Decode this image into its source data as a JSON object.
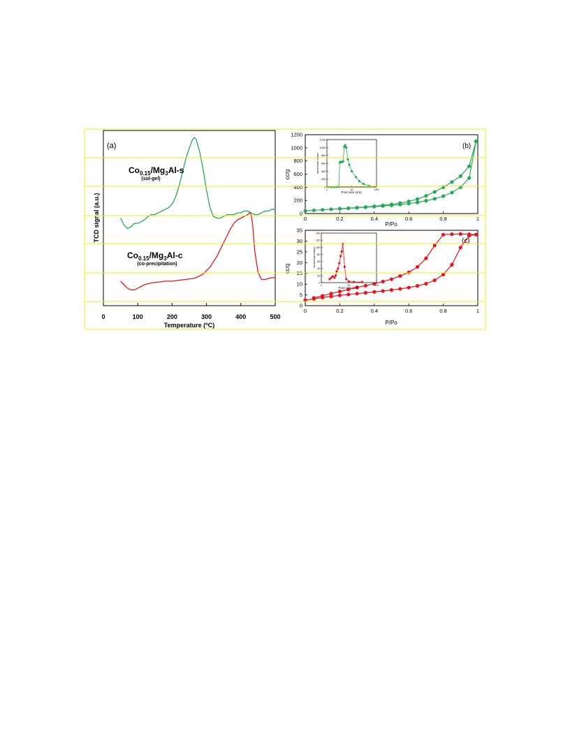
{
  "colors": {
    "green": "#22aa55",
    "red": "#e8121a",
    "highlight": "#f2ea1c",
    "frame": "#f2ea1c",
    "axis": "#000000"
  },
  "chart_data": [
    {
      "panel_label": "(a)",
      "type": "line",
      "xlabel": "Temperature (oC)",
      "ylabel": "TCD signal (a.u.)",
      "xlim": [
        0,
        500
      ],
      "xticks": [
        0,
        100,
        200,
        300,
        400,
        500
      ],
      "y_units": "arbitrary",
      "series": [
        {
          "name": "Co0.15/Mg3Al-s",
          "subtitle": "(sol-gel)",
          "label_main": "Co",
          "label_sub": "0.15",
          "label_mid": "/Mg",
          "label_sub2": "3",
          "label_end": "Al-s",
          "color": "green",
          "x": [
            50,
            60,
            70,
            80,
            90,
            100,
            110,
            120,
            130,
            140,
            150,
            160,
            170,
            180,
            190,
            200,
            210,
            220,
            230,
            240,
            250,
            260,
            265,
            270,
            280,
            290,
            300,
            310,
            320,
            330,
            340,
            350,
            360,
            370,
            380,
            390,
            400,
            410,
            420,
            430,
            440,
            450,
            460,
            470,
            480,
            490,
            500
          ],
          "y": [
            0.5,
            0.46,
            0.44,
            0.45,
            0.47,
            0.47,
            0.48,
            0.49,
            0.51,
            0.52,
            0.52,
            0.53,
            0.54,
            0.55,
            0.56,
            0.58,
            0.62,
            0.68,
            0.76,
            0.84,
            0.9,
            0.95,
            0.96,
            0.95,
            0.88,
            0.78,
            0.66,
            0.56,
            0.51,
            0.5,
            0.5,
            0.51,
            0.52,
            0.52,
            0.52,
            0.53,
            0.53,
            0.54,
            0.54,
            0.53,
            0.52,
            0.52,
            0.53,
            0.54,
            0.54,
            0.55,
            0.55
          ]
        },
        {
          "name": "Co0.15/Mg3Al-c",
          "subtitle": "(co-precipitation)",
          "label_main": "Co",
          "label_sub": "0.15",
          "label_mid": "/Mg",
          "label_sub2": "3",
          "label_end": "Al-c",
          "color": "red",
          "x": [
            50,
            60,
            70,
            80,
            90,
            100,
            110,
            120,
            140,
            160,
            180,
            200,
            220,
            240,
            260,
            270,
            280,
            290,
            300,
            310,
            320,
            330,
            340,
            350,
            360,
            370,
            380,
            390,
            400,
            410,
            420,
            425,
            430,
            435,
            440,
            450,
            460,
            470,
            480,
            490,
            500
          ],
          "y": [
            0.14,
            0.12,
            0.1,
            0.09,
            0.09,
            0.1,
            0.11,
            0.12,
            0.13,
            0.135,
            0.14,
            0.14,
            0.145,
            0.15,
            0.155,
            0.16,
            0.17,
            0.18,
            0.2,
            0.22,
            0.25,
            0.28,
            0.32,
            0.36,
            0.4,
            0.44,
            0.47,
            0.49,
            0.5,
            0.51,
            0.52,
            0.53,
            0.52,
            0.45,
            0.32,
            0.19,
            0.15,
            0.15,
            0.155,
            0.16,
            0.16
          ]
        }
      ]
    },
    {
      "panel_label": "(b)",
      "type": "line",
      "xlabel": "P/Po",
      "ylabel": "cc/g",
      "xlim": [
        0,
        1
      ],
      "ylim": [
        0,
        1200
      ],
      "xticks": [
        "0",
        "0.2",
        "0.4",
        "0.6",
        "0.8",
        "1"
      ],
      "yticks": [
        0,
        200,
        400,
        600,
        800,
        1000,
        1200
      ],
      "color": "green",
      "series": [
        {
          "role": "adsorption",
          "x": [
            0,
            0.05,
            0.1,
            0.15,
            0.2,
            0.25,
            0.3,
            0.35,
            0.4,
            0.45,
            0.5,
            0.55,
            0.6,
            0.65,
            0.7,
            0.75,
            0.8,
            0.85,
            0.9,
            0.95,
            0.99
          ],
          "y": [
            40,
            50,
            58,
            65,
            72,
            80,
            88,
            96,
            105,
            115,
            125,
            138,
            152,
            170,
            195,
            225,
            265,
            320,
            400,
            540,
            1100
          ]
        },
        {
          "role": "desorption",
          "x": [
            0.99,
            0.95,
            0.9,
            0.85,
            0.8,
            0.75,
            0.7,
            0.65,
            0.6,
            0.55,
            0.5,
            0.45,
            0.4,
            0.35,
            0.3,
            0.25,
            0.2
          ],
          "y": [
            1100,
            720,
            570,
            480,
            400,
            330,
            270,
            220,
            185,
            160,
            140,
            125,
            112,
            100,
            90,
            82,
            75
          ]
        }
      ],
      "inset": {
        "xlabel": "Pore size (nm)",
        "ylabel": "Incremental volume",
        "xscale": "log",
        "xlim": [
          1,
          100
        ],
        "ylim": [
          0,
          1200
        ],
        "xticks": [
          "1",
          "10",
          "100"
        ],
        "yticks": [
          0,
          200,
          400,
          600,
          800,
          1000,
          1200
        ],
        "x": [
          1.5,
          2,
          2.5,
          3,
          3.3,
          3.6,
          4,
          4.5,
          5,
          5.5,
          6,
          7,
          8,
          10,
          15,
          20,
          30,
          50,
          80
        ],
        "y": [
          2,
          3,
          4,
          10,
          620,
          640,
          630,
          650,
          1020,
          1060,
          1000,
          700,
          560,
          400,
          250,
          150,
          80,
          30,
          10
        ]
      }
    },
    {
      "panel_label": "(c)",
      "type": "line",
      "xlabel": "P/Po",
      "ylabel": "cc/g",
      "xlim": [
        0,
        1
      ],
      "ylim": [
        0,
        35
      ],
      "xticks": [
        "0",
        "0.2",
        "0.4",
        "0.6",
        "0.8",
        "1"
      ],
      "yticks": [
        0,
        5,
        10,
        15,
        20,
        25,
        30,
        35
      ],
      "color": "red",
      "series": [
        {
          "role": "adsorption",
          "x": [
            0,
            0.05,
            0.1,
            0.15,
            0.2,
            0.25,
            0.3,
            0.35,
            0.4,
            0.45,
            0.5,
            0.55,
            0.6,
            0.65,
            0.7,
            0.75,
            0.8,
            0.85,
            0.9,
            0.95,
            0.99
          ],
          "y": [
            2.5,
            3.2,
            3.8,
            4.3,
            4.8,
            5.2,
            5.6,
            6.0,
            6.4,
            6.8,
            7.3,
            7.8,
            8.4,
            9.2,
            10.2,
            11.8,
            14.5,
            19,
            27,
            32.5,
            33
          ]
        },
        {
          "role": "desorption",
          "x": [
            0.99,
            0.95,
            0.9,
            0.85,
            0.8,
            0.75,
            0.7,
            0.65,
            0.6,
            0.55,
            0.5,
            0.45,
            0.4,
            0.35,
            0.3,
            0.25,
            0.2,
            0.15,
            0.1,
            0.05
          ],
          "y": [
            33,
            33.2,
            33.3,
            33.2,
            33,
            28,
            22,
            18,
            15.5,
            13.8,
            12.3,
            11.2,
            10.2,
            9.3,
            8.5,
            7.5,
            6.6,
            5.6,
            4.6,
            3.6
          ]
        }
      ],
      "inset": {
        "xlabel": "Pore size (nm)",
        "ylabel": "Incremental volume",
        "xscale": "log",
        "xlim": [
          1,
          100
        ],
        "ylim": [
          0,
          140
        ],
        "xticks": [
          "1",
          "10",
          "100"
        ],
        "yticks": [
          0,
          20,
          40,
          60,
          80,
          100,
          120,
          140
        ],
        "x": [
          2,
          2.3,
          2.6,
          3,
          3.3,
          3.6,
          4,
          4.5,
          5,
          5.5,
          6,
          7,
          8,
          10,
          15,
          30
        ],
        "y": [
          10,
          14,
          18,
          14,
          20,
          32,
          40,
          55,
          75,
          88,
          110,
          45,
          10,
          3,
          2,
          2
        ]
      }
    }
  ]
}
